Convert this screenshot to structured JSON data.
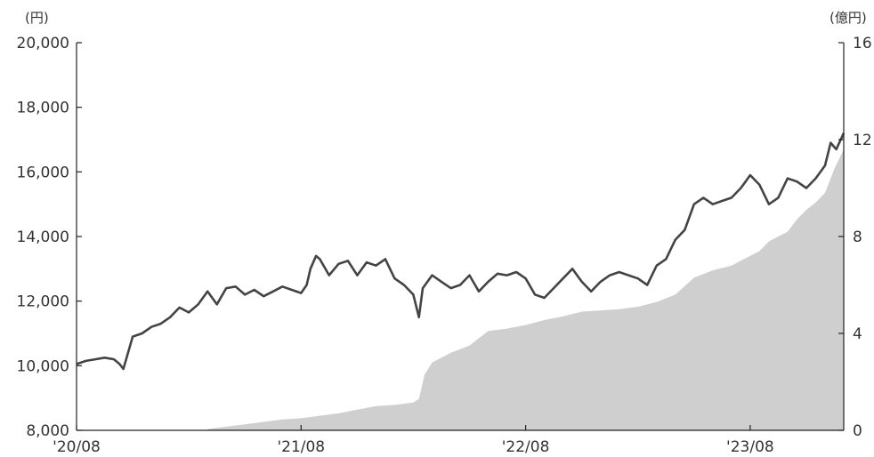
{
  "chart_data": {
    "type": "line",
    "left_axis": {
      "unit": "(円)",
      "min": 8000,
      "max": 20000,
      "ticks": [
        "8,000",
        "10,000",
        "12,000",
        "14,000",
        "16,000",
        "18,000",
        "20,000"
      ],
      "tick_values": [
        8000,
        10000,
        12000,
        14000,
        16000,
        18000,
        20000
      ]
    },
    "right_axis": {
      "unit": "(億円)",
      "min": 0,
      "max": 16,
      "ticks": [
        "0",
        "4",
        "8",
        "12",
        "16"
      ],
      "tick_values": [
        0,
        4,
        8,
        12,
        16
      ]
    },
    "x_axis": {
      "min": 0,
      "max": 41,
      "ticks": [
        "'20/08",
        "'21/08",
        "'22/08",
        "'23/08"
      ],
      "tick_values": [
        0,
        12,
        24,
        36
      ]
    },
    "series": [
      {
        "kind": "line",
        "axis": "left",
        "color": "#444444",
        "points": [
          [
            0,
            10050
          ],
          [
            0.5,
            10150
          ],
          [
            1,
            10200
          ],
          [
            1.5,
            10250
          ],
          [
            2,
            10200
          ],
          [
            2.3,
            10050
          ],
          [
            2.5,
            9900
          ],
          [
            2.8,
            10500
          ],
          [
            3,
            10900
          ],
          [
            3.5,
            11000
          ],
          [
            4,
            11200
          ],
          [
            4.5,
            11300
          ],
          [
            5,
            11500
          ],
          [
            5.5,
            11800
          ],
          [
            6,
            11650
          ],
          [
            6.5,
            11900
          ],
          [
            7,
            12300
          ],
          [
            7.5,
            11900
          ],
          [
            8,
            12400
          ],
          [
            8.5,
            12450
          ],
          [
            9,
            12200
          ],
          [
            9.5,
            12350
          ],
          [
            10,
            12150
          ],
          [
            10.5,
            12300
          ],
          [
            11,
            12450
          ],
          [
            11.5,
            12350
          ],
          [
            12,
            12250
          ],
          [
            12.3,
            12500
          ],
          [
            12.5,
            13000
          ],
          [
            12.8,
            13400
          ],
          [
            13,
            13300
          ],
          [
            13.5,
            12800
          ],
          [
            14,
            13150
          ],
          [
            14.5,
            13250
          ],
          [
            15,
            12800
          ],
          [
            15.5,
            13200
          ],
          [
            16,
            13100
          ],
          [
            16.5,
            13300
          ],
          [
            17,
            12700
          ],
          [
            17.5,
            12500
          ],
          [
            18,
            12200
          ],
          [
            18.3,
            11500
          ],
          [
            18.5,
            12400
          ],
          [
            19,
            12800
          ],
          [
            19.5,
            12600
          ],
          [
            20,
            12400
          ],
          [
            20.5,
            12500
          ],
          [
            21,
            12800
          ],
          [
            21.5,
            12300
          ],
          [
            22,
            12600
          ],
          [
            22.5,
            12850
          ],
          [
            23,
            12800
          ],
          [
            23.5,
            12900
          ],
          [
            24,
            12700
          ],
          [
            24.5,
            12200
          ],
          [
            25,
            12100
          ],
          [
            25.5,
            12400
          ],
          [
            26,
            12700
          ],
          [
            26.5,
            13000
          ],
          [
            27,
            12600
          ],
          [
            27.5,
            12300
          ],
          [
            28,
            12600
          ],
          [
            28.5,
            12800
          ],
          [
            29,
            12900
          ],
          [
            29.5,
            12800
          ],
          [
            30,
            12700
          ],
          [
            30.5,
            12500
          ],
          [
            31,
            13100
          ],
          [
            31.5,
            13300
          ],
          [
            32,
            13900
          ],
          [
            32.5,
            14200
          ],
          [
            33,
            15000
          ],
          [
            33.5,
            15200
          ],
          [
            34,
            15000
          ],
          [
            34.5,
            15100
          ],
          [
            35,
            15200
          ],
          [
            35.5,
            15500
          ],
          [
            36,
            15900
          ],
          [
            36.5,
            15600
          ],
          [
            37,
            15000
          ],
          [
            37.5,
            15200
          ],
          [
            38,
            15800
          ],
          [
            38.5,
            15700
          ],
          [
            39,
            15500
          ],
          [
            39.5,
            15800
          ],
          [
            40,
            16200
          ],
          [
            40.3,
            16900
          ],
          [
            40.6,
            16700
          ],
          [
            41,
            17200
          ]
        ]
      },
      {
        "kind": "area",
        "axis": "right",
        "color": "#cfcfcf",
        "points": [
          [
            7,
            0.05
          ],
          [
            8,
            0.15
          ],
          [
            9,
            0.25
          ],
          [
            10,
            0.35
          ],
          [
            11,
            0.45
          ],
          [
            12,
            0.5
          ],
          [
            13,
            0.6
          ],
          [
            14,
            0.7
          ],
          [
            15,
            0.85
          ],
          [
            16,
            1.0
          ],
          [
            17,
            1.05
          ],
          [
            18,
            1.15
          ],
          [
            18.3,
            1.3
          ],
          [
            18.6,
            2.3
          ],
          [
            19,
            2.8
          ],
          [
            20,
            3.2
          ],
          [
            21,
            3.5
          ],
          [
            21.5,
            3.8
          ],
          [
            22,
            4.1
          ],
          [
            23,
            4.2
          ],
          [
            24,
            4.35
          ],
          [
            25,
            4.55
          ],
          [
            26,
            4.7
          ],
          [
            27,
            4.9
          ],
          [
            28,
            4.95
          ],
          [
            29,
            5.0
          ],
          [
            30,
            5.1
          ],
          [
            31,
            5.3
          ],
          [
            32,
            5.6
          ],
          [
            33,
            6.3
          ],
          [
            34,
            6.6
          ],
          [
            35,
            6.8
          ],
          [
            35.5,
            7.0
          ],
          [
            36,
            7.2
          ],
          [
            36.5,
            7.4
          ],
          [
            37,
            7.8
          ],
          [
            38,
            8.2
          ],
          [
            38.5,
            8.7
          ],
          [
            39,
            9.1
          ],
          [
            39.5,
            9.4
          ],
          [
            40,
            9.8
          ],
          [
            40.5,
            10.8
          ],
          [
            41,
            11.6
          ]
        ]
      }
    ]
  }
}
